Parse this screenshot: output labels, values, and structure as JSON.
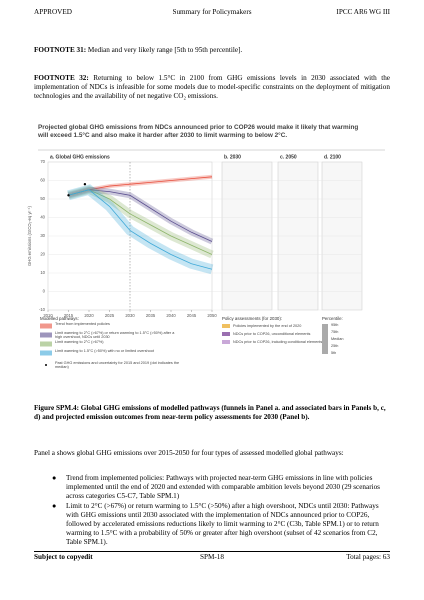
{
  "header": {
    "left": "APPROVED",
    "center": "Summary for Policymakers",
    "right": "IPCC AR6 WG III"
  },
  "footnotes": [
    {
      "label": "FOOTNOTE 31:",
      "text": "Median and very likely range [5th to 95th percentile]."
    },
    {
      "label": "FOOTNOTE 32:",
      "text": "Returning to below 1.5°C in 2100 from GHG emissions levels in 2030 associated with the implementation of NDCs is infeasible for some models due to model-specific constraints on the deployment of mitigation technologies and the availability of net negative CO₂ emissions."
    }
  ],
  "figure": {
    "title": "Projected global GHG emissions from NDCs announced prior to COP26 would make it likely that warming will exceed 1.5°C and also make it harder after 2030 to limit warming to below 2°C.",
    "panels": [
      "a. Global GHG emissions",
      "b. 2030",
      "c. 2050",
      "d. 2100"
    ],
    "chart_data": {
      "type": "line",
      "ylabel": "GHG emissions (GtCO₂-eq yr⁻¹)",
      "x": [
        2015,
        2020,
        2025,
        2030,
        2035,
        2040,
        2045,
        2050
      ],
      "series": [
        {
          "name": "Trend from implemented policies",
          "color": "#e8513f",
          "values": [
            52,
            55,
            57,
            58,
            59,
            60,
            61,
            62
          ]
        },
        {
          "name": "Limit warming to 2°C (>67%) or return warming to 1.5°C (>50%) after a high overshoot, NDCs until 2030",
          "color": "#5b4f8f",
          "values": [
            52,
            55,
            54,
            52,
            45,
            38,
            32,
            27
          ]
        },
        {
          "name": "Limit warming to 2°C (>67%)",
          "color": "#8db46a",
          "values": [
            52,
            55,
            50,
            42,
            36,
            30,
            25,
            20
          ]
        },
        {
          "name": "Limit warming to 1.5°C (>50%) with no or limited overshoot",
          "color": "#3fa9d8",
          "values": [
            52,
            55,
            46,
            33,
            26,
            20,
            15,
            12
          ]
        }
      ],
      "past": {
        "name": "Past GHG emissions and uncertainty for 2015 and 2019 (dot indicates the median)",
        "x": [
          2015,
          2019
        ],
        "values": [
          52,
          58
        ]
      },
      "xlim": [
        2010,
        2050
      ],
      "xticks": [
        2010,
        2015,
        2020,
        2025,
        2030,
        2035,
        2040,
        2045,
        2050
      ],
      "ylim": [
        -10,
        70
      ],
      "yticks": [
        -10,
        0,
        10,
        20,
        30,
        40,
        50,
        60,
        70
      ]
    },
    "legend_title": "Modelled pathways:",
    "policy_title": "Policy assessments (for 2030):",
    "policy": [
      "Policies implemented by the end of 2020",
      "NDCs prior to COP26, unconditional elements",
      "NDCs prior to COP26, including conditional elements"
    ],
    "percentile_title": "Percentile:",
    "percentiles": [
      "95th",
      "75th",
      "Median",
      "25th",
      "5th"
    ]
  },
  "caption": "Figure SPM.4: Global GHG emissions of modelled pathways (funnels in Panel a. and associated bars in Panels b, c, d) and projected emission outcomes from near-term policy assessments for 2030 (Panel b).",
  "intro": "Panel a shows global GHG emissions over 2015-2050 for four types of assessed modelled global pathways:",
  "bullets": [
    "Trend from implemented policies: Pathways with projected near-term GHG emissions in line with policies implemented until the end of 2020 and extended with comparable ambition levels beyond 2030 (29 scenarios across categories C5-C7, Table SPM.1)",
    "Limit to 2°C (>67%) or return warming to 1.5°C (>50%) after a high overshoot, NDCs until 2030: Pathways with GHG emissions until 2030 associated with the implementation of NDCs announced prior to COP26, followed by accelerated emissions reductions likely to limit warming to 2°C (C3b, Table SPM.1) or to return warming to 1.5°C with a probability of 50% or greater after high overshoot (subset of 42 scenarios from C2, Table SPM.1)."
  ],
  "footer": {
    "left": "Subject to copyedit",
    "center": "SPM-18",
    "right": "Total pages: 63"
  }
}
